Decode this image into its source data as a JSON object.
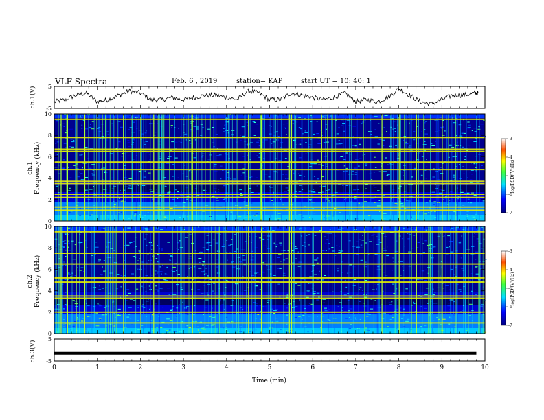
{
  "header": {
    "title": "VLF Spectra",
    "date": "Feb. 6 , 2019",
    "station": "station= KAP",
    "start": "start UT = 10: 40: 1"
  },
  "panels": {
    "ch1_label": "ch.1(V)",
    "ch1_spec_label": "ch.1",
    "ch2_spec_label": "ch.2",
    "freq_label": "Frequency (kHz)",
    "ch3_label": "ch.3(V)",
    "colorbar_label": "log(PSD)(V²/Hz)"
  },
  "chart_data": [
    {
      "type": "line",
      "name": "ch1-waveform",
      "xlabel": "",
      "ylabel": "ch.1(V)",
      "xlim": [
        0,
        10
      ],
      "ylim": [
        -5,
        5
      ],
      "yticks": [
        -5,
        5
      ],
      "x": [
        0,
        0.25,
        0.5,
        0.75,
        1,
        1.25,
        1.5,
        1.75,
        2,
        2.25,
        2.5,
        2.75,
        3,
        3.25,
        3.5,
        3.75,
        4,
        4.25,
        4.5,
        4.75,
        5,
        5.25,
        5.5,
        5.75,
        6,
        6.25,
        6.5,
        6.75,
        7,
        7.25,
        7.5,
        7.75,
        8,
        8.25,
        8.5,
        8.75,
        9,
        9.25,
        9.5,
        9.75
      ],
      "y": [
        -2,
        -1,
        1,
        2,
        -2,
        -1,
        1,
        3,
        2,
        -1,
        -1,
        0,
        -1,
        0,
        1,
        1,
        0,
        -1,
        3,
        2,
        -1,
        -1,
        2,
        1,
        0,
        -1,
        0,
        2,
        -2,
        -1,
        -2,
        0,
        4,
        1,
        -2,
        -3,
        -1,
        1,
        1,
        2
      ]
    },
    {
      "type": "heatmap",
      "name": "ch1-spectrogram",
      "xlabel": "",
      "ylabel": "Frequency (kHz)",
      "xlim": [
        0,
        10
      ],
      "ylim": [
        0,
        10
      ],
      "yticks": [
        0,
        2,
        4,
        6,
        8,
        10
      ],
      "colorbar": {
        "label": "log(PSD)(V²/Hz)",
        "range": [
          -7,
          -3
        ],
        "ticks": [
          -3,
          -4,
          -5,
          -6,
          -7
        ]
      },
      "horizontal_lines_khz": [
        1.0,
        1.3,
        2.2,
        2.5,
        3.5,
        3.7,
        4.8,
        5.5,
        6.5,
        6.7,
        7.8,
        9.5
      ],
      "vertical_spikes_min": [
        0.15,
        0.3,
        0.5,
        0.7,
        1.4,
        1.6,
        2.0,
        2.3,
        3.2,
        4.5,
        4.8,
        5.45,
        5.5,
        6.2,
        7.6,
        8.0,
        8.4,
        9.0,
        9.3
      ]
    },
    {
      "type": "heatmap",
      "name": "ch2-spectrogram",
      "xlabel": "",
      "ylabel": "Frequency (kHz)",
      "xlim": [
        0,
        10
      ],
      "ylim": [
        0,
        10
      ],
      "yticks": [
        0,
        2,
        4,
        6,
        8,
        10
      ],
      "colorbar": {
        "label": "log(PSD)(V²/Hz)",
        "range": [
          -7,
          -3
        ],
        "ticks": [
          -3,
          -4,
          -5,
          -6,
          -7
        ]
      },
      "horizontal_lines_khz": [
        1.0,
        2.0,
        3.3,
        3.5,
        4.8,
        5.2,
        6.5,
        7.5,
        9.5
      ],
      "vertical_spikes_min": [
        0.15,
        0.3,
        0.5,
        0.7,
        1.4,
        1.6,
        2.0,
        2.3,
        3.2,
        4.5,
        4.8,
        5.45,
        5.5,
        6.2,
        7.6,
        8.0,
        8.4,
        9.0,
        9.3
      ]
    },
    {
      "type": "line",
      "name": "ch3-waveform",
      "xlabel": "Time (min)",
      "ylabel": "ch.3(V)",
      "xlim": [
        0,
        10
      ],
      "ylim": [
        -5,
        5
      ],
      "yticks": [
        -5,
        5
      ],
      "xticks": [
        0,
        1,
        2,
        3,
        4,
        5,
        6,
        7,
        8,
        9,
        10
      ],
      "x": [
        0,
        9.8
      ],
      "y": [
        -1.5,
        -1.5
      ]
    }
  ]
}
